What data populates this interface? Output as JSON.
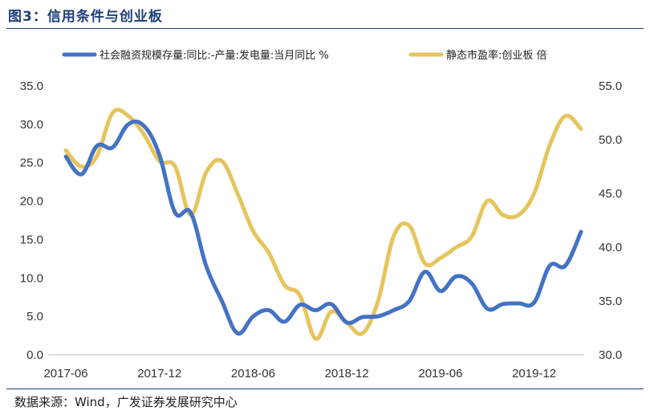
{
  "header": {
    "title": "图3：信用条件与创业板"
  },
  "footer": {
    "source": "数据来源：Wind，广发证券发展研究中心"
  },
  "chart_data": {
    "type": "line",
    "title": "信用条件与创业板",
    "x": [
      "2017-06",
      "2017-07",
      "2017-08",
      "2017-09",
      "2017-10",
      "2017-11",
      "2017-12",
      "2018-01",
      "2018-02",
      "2018-03",
      "2018-04",
      "2018-05",
      "2018-06",
      "2018-07",
      "2018-08",
      "2018-09",
      "2018-10",
      "2018-11",
      "2018-12",
      "2019-01",
      "2019-02",
      "2019-03",
      "2019-04",
      "2019-05",
      "2019-06",
      "2019-07",
      "2019-08",
      "2019-09",
      "2019-10",
      "2019-11",
      "2019-12",
      "2020-01",
      "2020-02",
      "2020-03"
    ],
    "x_ticks": [
      "2017-06",
      "2017-12",
      "2018-06",
      "2018-12",
      "2019-06",
      "2019-12"
    ],
    "series": [
      {
        "name": "社会融资规模存量:同比:-产量:发电量:当月同比 %",
        "axis": "left",
        "color": "#4472c4",
        "values": [
          25.8,
          23.5,
          27.2,
          27.0,
          30.0,
          29.8,
          26.0,
          18.5,
          18.5,
          11.5,
          7.0,
          2.8,
          5.0,
          5.8,
          4.3,
          6.5,
          5.8,
          6.6,
          4.2,
          4.9,
          5.0,
          5.8,
          7.0,
          10.8,
          8.3,
          10.2,
          9.3,
          6.0,
          6.6,
          6.7,
          6.8,
          11.6,
          11.6,
          16.0
        ]
      },
      {
        "name": "静态市盈率:创业板 倍",
        "axis": "right",
        "color": "#e5c55d",
        "values": [
          49.0,
          47.5,
          48.5,
          52.5,
          52.2,
          50.5,
          48.0,
          47.5,
          43.0,
          47.0,
          48.0,
          45.0,
          41.5,
          39.5,
          36.5,
          35.5,
          31.5,
          34.0,
          33.0,
          32.0,
          35.0,
          41.0,
          42.0,
          38.5,
          39.0,
          40.0,
          41.0,
          44.3,
          43.0,
          43.0,
          45.0,
          49.5,
          52.2,
          51.0
        ]
      }
    ],
    "y_left": {
      "min": 0,
      "max": 35,
      "ticks": [
        "0.0",
        "5.0",
        "10.0",
        "15.0",
        "20.0",
        "25.0",
        "30.0",
        "35.0"
      ]
    },
    "y_right": {
      "min": 30,
      "max": 55,
      "ticks": [
        "30.0",
        "35.0",
        "40.0",
        "45.0",
        "50.0",
        "55.0"
      ]
    },
    "legend_position": "top",
    "grid": false
  }
}
